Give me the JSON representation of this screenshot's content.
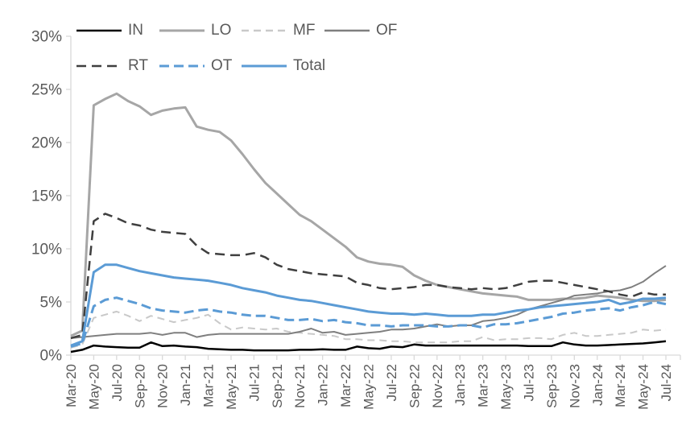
{
  "chart_data": {
    "type": "line",
    "title": "",
    "xlabel": "",
    "ylabel": "",
    "grid": false,
    "legend_position": "top",
    "axis_color": "#d9d9d9",
    "text_color": "#595959",
    "ylim": [
      0,
      30
    ],
    "y_ticks": {
      "values": [
        0,
        5,
        10,
        15,
        20,
        25,
        30
      ],
      "labels": [
        "0%",
        "5%",
        "10%",
        "15%",
        "20%",
        "25%",
        "30%"
      ]
    },
    "x_tick_every": 2,
    "x_tick_labels": [
      "Mar-20",
      "May-20",
      "Jul-20",
      "Sep-20",
      "Nov-20",
      "Jan-21",
      "Mar-21",
      "May-21",
      "Jul-21",
      "Sep-21",
      "Nov-21",
      "Jan-22",
      "Mar-22",
      "May-22",
      "Jul-22",
      "Sep-22",
      "Nov-22",
      "Jan-23",
      "Mar-23",
      "May-23",
      "Jul-23",
      "Sep-23",
      "Nov-23",
      "Jan-24",
      "Mar-24",
      "May-24",
      "Jul-24"
    ],
    "months": [
      "Mar-20",
      "Apr-20",
      "May-20",
      "Jun-20",
      "Jul-20",
      "Aug-20",
      "Sep-20",
      "Oct-20",
      "Nov-20",
      "Dec-20",
      "Jan-21",
      "Feb-21",
      "Mar-21",
      "Apr-21",
      "May-21",
      "Jun-21",
      "Jul-21",
      "Aug-21",
      "Sep-21",
      "Oct-21",
      "Nov-21",
      "Dec-21",
      "Jan-22",
      "Feb-22",
      "Mar-22",
      "Apr-22",
      "May-22",
      "Jun-22",
      "Jul-22",
      "Aug-22",
      "Sep-22",
      "Oct-22",
      "Nov-22",
      "Dec-22",
      "Jan-23",
      "Feb-23",
      "Mar-23",
      "Apr-23",
      "May-23",
      "Jun-23",
      "Jul-23",
      "Aug-23",
      "Sep-23",
      "Oct-23",
      "Nov-23",
      "Dec-23",
      "Jan-24",
      "Feb-24",
      "Mar-24",
      "Apr-24",
      "May-24",
      "Jun-24",
      "Jul-24"
    ],
    "series": [
      {
        "name": "IN",
        "color": "#000000",
        "style": "solid",
        "width": 2.5,
        "dash": null,
        "values": [
          0.3,
          0.5,
          0.9,
          0.8,
          0.75,
          0.7,
          0.7,
          1.2,
          0.85,
          0.9,
          0.8,
          0.75,
          0.6,
          0.55,
          0.5,
          0.5,
          0.45,
          0.45,
          0.45,
          0.45,
          0.5,
          0.5,
          0.55,
          0.5,
          0.5,
          0.8,
          0.65,
          0.6,
          0.8,
          0.75,
          1.0,
          0.9,
          0.9,
          0.9,
          0.9,
          0.9,
          0.9,
          0.9,
          0.9,
          0.9,
          0.85,
          0.85,
          0.85,
          1.2,
          1.0,
          0.9,
          0.9,
          0.95,
          1.0,
          1.05,
          1.1,
          1.2,
          1.3
        ]
      },
      {
        "name": "LO",
        "color": "#a6a6a6",
        "style": "solid",
        "width": 3,
        "dash": null,
        "values": [
          1.8,
          2.3,
          23.5,
          24.1,
          24.6,
          23.9,
          23.4,
          22.6,
          23.0,
          23.2,
          23.3,
          21.5,
          21.2,
          21.0,
          20.2,
          18.9,
          17.5,
          16.2,
          15.2,
          14.2,
          13.2,
          12.6,
          11.8,
          11.0,
          10.2,
          9.2,
          8.8,
          8.6,
          8.5,
          8.3,
          7.5,
          7.0,
          6.6,
          6.4,
          6.2,
          6.0,
          5.8,
          5.7,
          5.6,
          5.5,
          5.2,
          5.2,
          5.2,
          5.3,
          5.3,
          5.4,
          5.6,
          5.5,
          5.4,
          5.2,
          5.1,
          5.1,
          5.2
        ]
      },
      {
        "name": "MF",
        "color": "#c9c9c9",
        "style": "dashed",
        "width": 2,
        "dash": "9,6",
        "values": [
          0.7,
          1.0,
          3.5,
          3.8,
          4.1,
          3.7,
          3.2,
          3.7,
          3.4,
          3.1,
          3.3,
          3.5,
          3.8,
          3.0,
          2.4,
          2.6,
          2.5,
          2.4,
          2.5,
          2.2,
          2.1,
          2.0,
          1.9,
          1.8,
          1.5,
          1.5,
          1.4,
          1.4,
          1.3,
          1.3,
          1.2,
          1.2,
          1.2,
          1.2,
          1.3,
          1.3,
          1.7,
          1.4,
          1.5,
          1.5,
          1.6,
          1.6,
          1.5,
          1.9,
          2.1,
          1.8,
          1.8,
          1.9,
          2.0,
          2.1,
          2.4,
          2.3,
          2.4
        ]
      },
      {
        "name": "OF",
        "color": "#7f7f7f",
        "style": "solid",
        "width": 2,
        "dash": null,
        "values": [
          1.6,
          1.7,
          1.8,
          1.9,
          2.0,
          2.0,
          2.0,
          2.1,
          1.9,
          2.1,
          2.1,
          1.7,
          1.9,
          2.0,
          2.0,
          2.0,
          2.0,
          2.0,
          2.0,
          2.0,
          2.2,
          2.5,
          2.1,
          2.2,
          1.9,
          2.0,
          2.1,
          2.2,
          2.4,
          2.4,
          2.5,
          2.7,
          2.9,
          2.7,
          2.8,
          2.8,
          3.2,
          3.3,
          3.5,
          3.8,
          4.3,
          4.6,
          4.9,
          5.2,
          5.6,
          5.7,
          5.8,
          6.0,
          6.1,
          6.4,
          6.9,
          7.7,
          8.4
        ]
      },
      {
        "name": "RT",
        "color": "#3f3f3f",
        "style": "dashed",
        "width": 2.5,
        "dash": "12,7",
        "values": [
          1.6,
          1.9,
          12.6,
          13.3,
          12.9,
          12.4,
          12.2,
          11.8,
          11.6,
          11.5,
          11.4,
          10.3,
          9.6,
          9.5,
          9.4,
          9.4,
          9.6,
          9.2,
          8.5,
          8.1,
          7.9,
          7.7,
          7.6,
          7.5,
          7.4,
          6.8,
          6.6,
          6.3,
          6.2,
          6.3,
          6.4,
          6.6,
          6.6,
          6.4,
          6.3,
          6.2,
          6.3,
          6.2,
          6.3,
          6.6,
          6.9,
          7.0,
          7.0,
          6.8,
          6.6,
          6.4,
          6.2,
          6.0,
          5.7,
          5.5,
          5.9,
          5.7,
          5.7
        ]
      },
      {
        "name": "OT",
        "color": "#5b9bd5",
        "style": "dashed",
        "width": 3,
        "dash": "12,6",
        "values": [
          0.8,
          1.1,
          4.6,
          5.2,
          5.4,
          5.1,
          4.8,
          4.4,
          4.2,
          4.1,
          4.0,
          4.2,
          4.3,
          4.1,
          4.0,
          3.8,
          3.7,
          3.7,
          3.5,
          3.3,
          3.3,
          3.4,
          3.2,
          3.3,
          3.1,
          3.0,
          2.8,
          2.8,
          2.7,
          2.8,
          2.8,
          2.8,
          2.7,
          2.7,
          2.8,
          2.8,
          2.6,
          2.9,
          2.9,
          3.0,
          3.2,
          3.4,
          3.6,
          3.9,
          4.0,
          4.2,
          4.3,
          4.4,
          4.2,
          4.5,
          4.7,
          5.0,
          4.8
        ]
      },
      {
        "name": "Total",
        "color": "#5b9bd5",
        "style": "solid",
        "width": 3,
        "dash": null,
        "values": [
          0.9,
          1.3,
          7.8,
          8.5,
          8.5,
          8.2,
          7.9,
          7.7,
          7.5,
          7.3,
          7.2,
          7.1,
          7.0,
          6.8,
          6.6,
          6.3,
          6.1,
          5.9,
          5.6,
          5.4,
          5.2,
          5.1,
          4.9,
          4.7,
          4.5,
          4.3,
          4.1,
          4.0,
          3.9,
          3.9,
          3.8,
          3.9,
          3.8,
          3.7,
          3.7,
          3.7,
          3.8,
          3.8,
          4.0,
          4.2,
          4.3,
          4.5,
          4.6,
          4.7,
          4.8,
          4.9,
          5.0,
          5.2,
          4.8,
          5.0,
          5.3,
          5.3,
          5.4
        ]
      }
    ]
  }
}
